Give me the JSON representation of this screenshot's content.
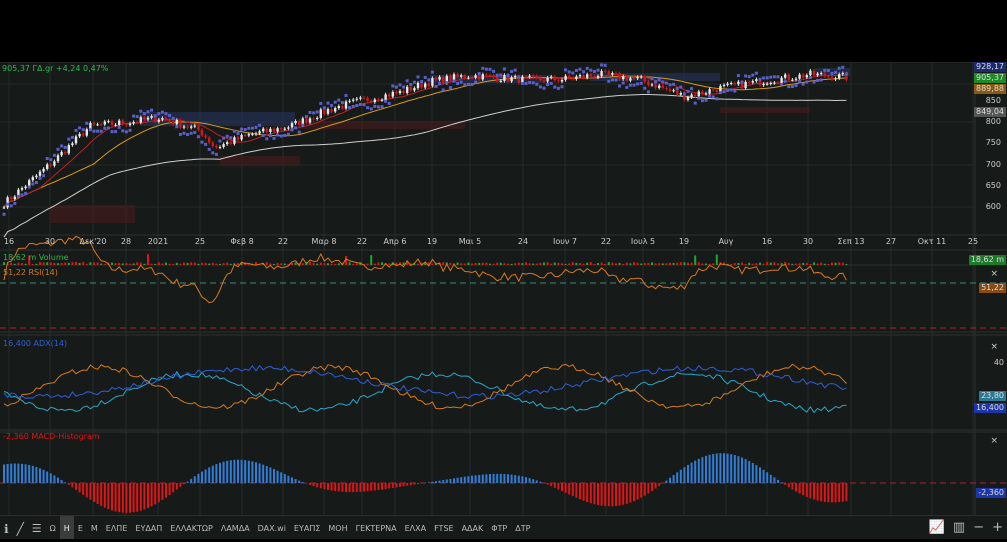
{
  "header": {
    "quote": "905,37 ΓΔ.gr +4,24 0,47%"
  },
  "price_axis": {
    "ticks": [
      "850",
      "800",
      "750",
      "700",
      "650",
      "600"
    ],
    "tags": [
      {
        "v": "928,17",
        "c": "#1c2a6e"
      },
      {
        "v": "905,37",
        "c": "#1e8a24"
      },
      {
        "v": "889,88",
        "c": "#8a5a12"
      },
      {
        "v": "849,04",
        "c": "#555"
      }
    ]
  },
  "time_axis": [
    "16",
    "30",
    "Δεκ'20",
    "28",
    "2021",
    "25",
    "Φεβ 8",
    "22",
    "Μαρ 8",
    "22",
    "Απρ 6",
    "19",
    "Μαι 5",
    "24",
    "Ιουν 7",
    "22",
    "Ιουλ 5",
    "19",
    "Αυγ",
    "16",
    "30",
    "Σεπ 13",
    "27",
    "Οκτ 11",
    "25"
  ],
  "volume": {
    "label": "18,62 m Volume",
    "tag": "18,62 m"
  },
  "rsi": {
    "label": "51,22 RSI(14)",
    "tag": "51,22"
  },
  "adx": {
    "label": "16,400 ADX(14)",
    "tick": "40",
    "tag1": "23,80",
    "tag2": "16,400"
  },
  "macd": {
    "label": "-2,360 MACD-Histogram",
    "tag": "-2,360"
  },
  "close_label": "×",
  "colors": {
    "up": "#e8e8e8",
    "down": "#d01818",
    "vol_up": "#1fa535",
    "vol_down": "#e01515",
    "adx": "#2d5fd6",
    "di_plus": "#2aa7c9",
    "di_minus": "#d8791c",
    "macd_up": "#2f7ed8",
    "macd_down": "#e01515"
  },
  "toolbar": {
    "items": [
      "Ω",
      "Η",
      "Ε",
      "Μ",
      "ΕΛΠΕ",
      "ΕΥΔΑΠ",
      "ΕΛΛΑΚΤΩΡ",
      "ΛΑΜΔΑ",
      "DAX.wi",
      "ΕΥΑΠΣ",
      "ΜΟΗ",
      "ΓΕΚΤΕΡΝΑ",
      "ΕΛΧΑ",
      "FTSE",
      "ΑΔΑΚ",
      "ΦΤΡ",
      "ΔΤΡ"
    ],
    "selected": "Η"
  }
}
